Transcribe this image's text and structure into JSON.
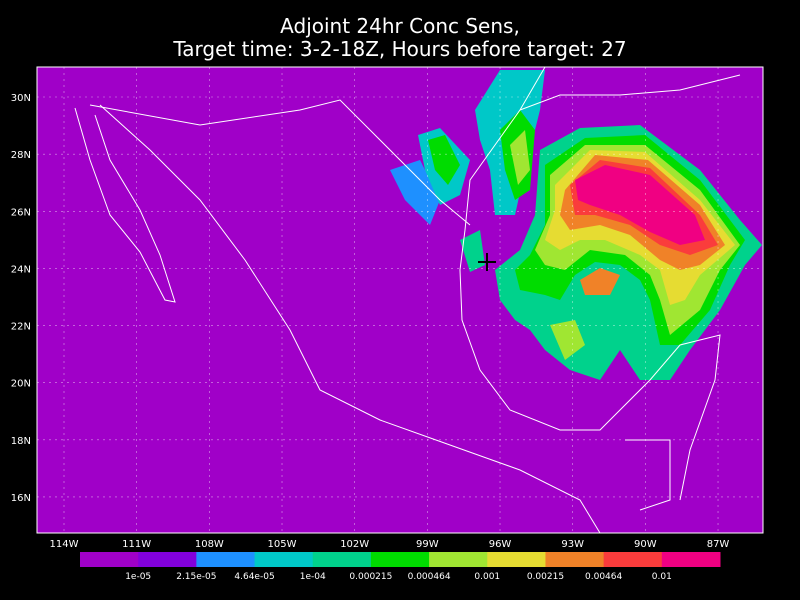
{
  "title": [
    "Adjoint 24hr Conc Sens,",
    "Target time: 3-2-18Z, Hours before target: 27"
  ],
  "map": {
    "background": "#a000c8",
    "lon_ticks": [
      "114W",
      "111W",
      "108W",
      "105W",
      "102W",
      "99W",
      "96W",
      "93W",
      "90W",
      "87W"
    ],
    "lat_ticks": [
      "30N",
      "28N",
      "26N",
      "24N",
      "22N",
      "20N",
      "18N",
      "16N"
    ]
  },
  "colorbar": {
    "colors": [
      "#a000c8",
      "#8200dc",
      "#1e90ff",
      "#00c8c8",
      "#00d28c",
      "#00dc00",
      "#a0e632",
      "#e6dc32",
      "#f08228",
      "#fa3c3c",
      "#f00082"
    ],
    "labels": [
      "1e-05",
      "2.15e-05",
      "4.64e-05",
      "1e-04",
      "0.000215",
      "0.000464",
      "0.001",
      "0.00215",
      "0.00464",
      "0.01"
    ]
  }
}
